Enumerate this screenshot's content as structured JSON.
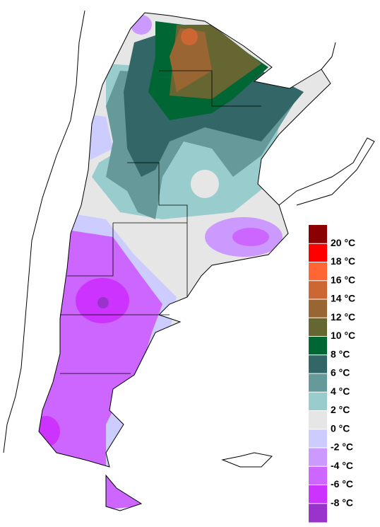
{
  "legend": {
    "colors": [
      "#8b0000",
      "#ff0000",
      "#ff6633",
      "#cc6633",
      "#996633",
      "#666633",
      "#006633",
      "#336666",
      "#669999",
      "#99cccc",
      "#e6e6e6",
      "#ccccff",
      "#cc99ff",
      "#cc66ff",
      "#cc33ff",
      "#9933cc"
    ],
    "labels": [
      "20 °C",
      "18 °C",
      "16 °C",
      "14 °C",
      "12 °C",
      "10 °C",
      "8 °C",
      "6 °C",
      "4 °C",
      "2 °C",
      "0 °C",
      "-2 °C",
      "-4 °C",
      "-6 °C",
      "-8 °C"
    ]
  }
}
